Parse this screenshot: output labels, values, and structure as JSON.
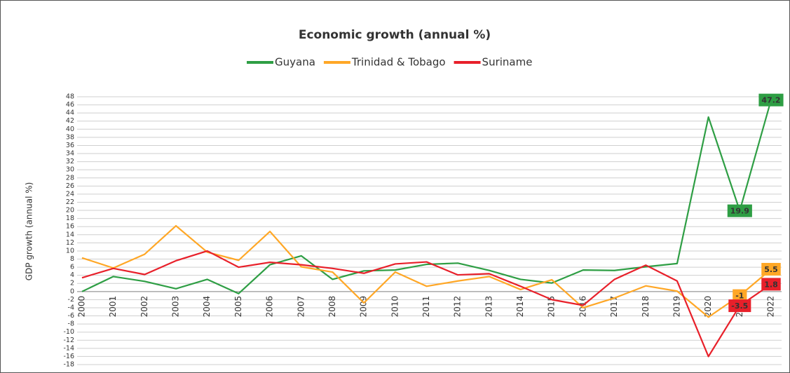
{
  "chart_data": {
    "type": "line",
    "title": "Economic growth (annual %)",
    "y_label": "GDP growth (annual %)",
    "categories": [
      "2000",
      "2001",
      "2002",
      "2003",
      "2004",
      "2005",
      "2006",
      "2007",
      "2008",
      "2009",
      "2010",
      "2011",
      "2012",
      "2013",
      "2014",
      "2015",
      "2016",
      "2017",
      "2018",
      "2019",
      "2020",
      "2021",
      "2022"
    ],
    "series": [
      {
        "name": "Guyana",
        "color": "#2e9e44",
        "values": [
          0,
          3.7,
          2.5,
          0.7,
          3.0,
          -0.5,
          6.6,
          8.8,
          3.0,
          5.1,
          5.3,
          6.7,
          7.0,
          5.2,
          3.0,
          2.1,
          5.3,
          5.2,
          6.1,
          6.9,
          43,
          19.9,
          47.2
        ],
        "value_labels": [
          null,
          null,
          null,
          null,
          null,
          null,
          null,
          null,
          null,
          null,
          null,
          null,
          null,
          null,
          null,
          null,
          null,
          null,
          null,
          null,
          null,
          "19.9",
          "47.2"
        ]
      },
      {
        "name": "Trinidad & Tobago",
        "color": "#ffa726",
        "values": [
          8.3,
          5.8,
          9.2,
          16.2,
          9.7,
          7.7,
          14.8,
          6.1,
          4.8,
          -2.8,
          4.8,
          1.3,
          2.6,
          3.7,
          0.5,
          2.9,
          -4.0,
          -1.6,
          1.4,
          0.1,
          -6.3,
          -1,
          5.5
        ],
        "value_labels": [
          null,
          null,
          null,
          null,
          null,
          null,
          null,
          null,
          null,
          null,
          null,
          null,
          null,
          null,
          null,
          null,
          null,
          null,
          null,
          null,
          null,
          "-1",
          "5.5"
        ]
      },
      {
        "name": "Suriname",
        "color": "#e8202a",
        "values": [
          3.4,
          5.7,
          4.2,
          7.6,
          10.0,
          6.0,
          7.2,
          6.6,
          5.7,
          4.5,
          6.8,
          7.3,
          4.1,
          4.4,
          1.3,
          -2.0,
          -3.4,
          3.0,
          6.5,
          2.6,
          -16,
          -3.5,
          1.8
        ],
        "value_labels": [
          null,
          null,
          null,
          null,
          null,
          null,
          null,
          null,
          null,
          null,
          null,
          null,
          null,
          null,
          null,
          null,
          null,
          null,
          null,
          null,
          null,
          "-3.5",
          "1.8"
        ]
      }
    ],
    "ylim": [
      -18,
      48
    ],
    "yticks": [
      -18,
      -16,
      -14,
      -12,
      -10,
      -8,
      -6,
      -4,
      -2,
      0,
      2,
      4,
      6,
      8,
      10,
      12,
      14,
      16,
      18,
      20,
      22,
      24,
      26,
      28,
      30,
      32,
      34,
      36,
      38,
      40,
      42,
      44,
      46,
      48
    ],
    "grid": true,
    "legend": "top"
  }
}
